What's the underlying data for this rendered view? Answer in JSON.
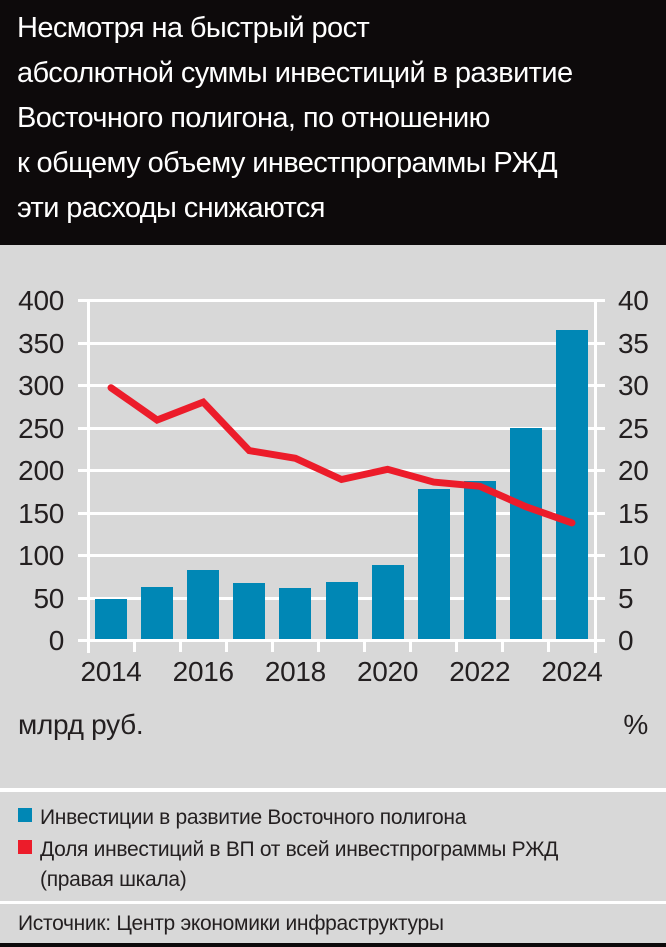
{
  "header": {
    "title": "Несмотря на быстрый рост\nабсолютной суммы инвестиций в развитие\nВосточного полигона, по отношению\nк общему объему инвестпрограммы РЖД\nэти расходы снижаются"
  },
  "chart_data": {
    "type": "combo",
    "categories": [
      "2014",
      "2015",
      "2016",
      "2017",
      "2018",
      "2019",
      "2020",
      "2021",
      "2022",
      "2023",
      "2024"
    ],
    "x_tick_labels": [
      "2014",
      "2016",
      "2018",
      "2020",
      "2022",
      "2024"
    ],
    "series": [
      {
        "name": "Инвестиции в развитие Восточного полигона",
        "type": "bar",
        "axis": "left",
        "color": "#0087b5",
        "values": [
          50,
          64,
          84,
          68,
          62,
          70,
          90,
          179,
          188,
          251,
          366
        ]
      },
      {
        "name": "Доля инвестиций в ВП от всей инвестпрограммы РЖД (правая шкала)",
        "type": "line",
        "axis": "right",
        "color": "#ec1c2a",
        "values": [
          29.8,
          26.0,
          28.1,
          22.4,
          21.5,
          19.0,
          20.2,
          18.7,
          18.2,
          15.8,
          13.9
        ]
      }
    ],
    "left_axis": {
      "label": "млрд руб.",
      "min": 0,
      "max": 400,
      "step": 50,
      "tick_labels": [
        "400",
        "350",
        "300",
        "250",
        "200",
        "150",
        "100",
        "50",
        "0"
      ]
    },
    "right_axis": {
      "label": "%",
      "min": 0,
      "max": 40,
      "step": 5,
      "tick_labels": [
        "40",
        "35",
        "30",
        "25",
        "20",
        "15",
        "10",
        "5",
        "0"
      ]
    },
    "grid": true,
    "grid_color": "#ffffff",
    "legend_position": "bottom"
  },
  "legend": {
    "items": [
      {
        "label": "Инвестиции в развитие Восточного полигона",
        "note": "",
        "color": "#0087b5"
      },
      {
        "label": "Доля инвестиций в ВП от всей инвестпрограммы РЖД",
        "note": "(правая шкала)",
        "color": "#ec1c2a"
      }
    ]
  },
  "footer": {
    "source": "Источник: Центр экономики инфраструктуры"
  },
  "colors": {
    "page_background": "#d8d8d8",
    "header_background": "#0d0a0b",
    "header_text": "#ffffff",
    "body_text": "#231f20",
    "grid": "#ffffff",
    "bar": "#0087b5",
    "line": "#ec1c2a"
  }
}
